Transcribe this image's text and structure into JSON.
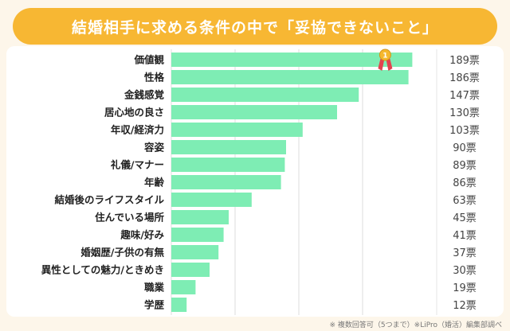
{
  "title": "結婚相手に求める条件の中で「妥協できないこと」",
  "footnote": "※ 複数回答可（5つまで）※LiPro（婚活）編集部調べ",
  "colors": {
    "banner": "#f7b733",
    "bar": "#7eedb4",
    "medal_gold": "#f5b82e",
    "medal_ribbon": "#e2434f",
    "grid": "#dcdcdc",
    "divider": "#e6e6e6"
  },
  "chart_data": {
    "type": "bar",
    "orientation": "horizontal",
    "unit": "票",
    "categories": [
      "価値観",
      "性格",
      "金銭感覚",
      "居心地の良さ",
      "年収/経済力",
      "容姿",
      "礼儀/マナー",
      "年齢",
      "結婚後のライフスタイル",
      "住んでいる場所",
      "趣味/好み",
      "婚姻歴/子供の有無",
      "異性としての魅力/ときめき",
      "職業",
      "学歴"
    ],
    "values": [
      189,
      186,
      147,
      130,
      103,
      90,
      89,
      86,
      63,
      45,
      41,
      37,
      30,
      19,
      12
    ],
    "value_labels": [
      "189票",
      "186票",
      "147票",
      "130票",
      "103票",
      "90票",
      "89票",
      "86票",
      "63票",
      "45票",
      "41票",
      "37票",
      "30票",
      "19票",
      "12票"
    ],
    "xlim": [
      0,
      200
    ],
    "grid": true,
    "medal": {
      "category": "価値観",
      "rank": "1",
      "icon": "gold-medal-icon"
    }
  }
}
